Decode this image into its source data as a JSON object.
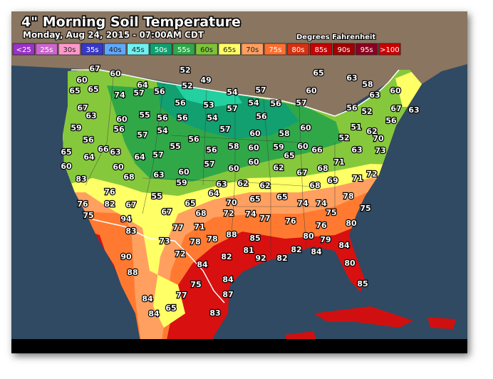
{
  "header": {
    "title": "4\" Morning Soil Temperature",
    "subtitle": "Monday, Aug 24, 2015 - 07:00AM CDT",
    "units": "Degrees Fahrenheit"
  },
  "legend": [
    {
      "label": "<25",
      "color": "#9a32c8"
    },
    {
      "label": "25s",
      "color": "#cc66cc"
    },
    {
      "label": "30s",
      "color": "#ff99cc"
    },
    {
      "label": "35s",
      "color": "#3838c8"
    },
    {
      "label": "40s",
      "color": "#5fa8ff"
    },
    {
      "label": "45s",
      "color": "#70f0f0"
    },
    {
      "label": "50s",
      "color": "#10a070"
    },
    {
      "label": "55s",
      "color": "#2ea84a"
    },
    {
      "label": "60s",
      "color": "#7cc43a"
    },
    {
      "label": "65s",
      "color": "#ffff66"
    },
    {
      "label": "70s",
      "color": "#ff9f60"
    },
    {
      "label": "75s",
      "color": "#ff7030"
    },
    {
      "label": "80s",
      "color": "#d83010"
    },
    {
      "label": "85s",
      "color": "#c80000"
    },
    {
      "label": "90s",
      "color": "#a00000"
    },
    {
      "label": "95s",
      "color": "#8a0020"
    },
    {
      "label": ">100",
      "color": "#cc0000"
    }
  ],
  "stations": [
    67,
    60,
    52,
    49,
    65,
    63,
    60,
    65,
    64,
    57,
    56,
    52,
    54,
    57,
    60,
    58,
    60,
    65,
    74,
    63,
    67,
    56,
    53,
    57,
    54,
    56,
    57,
    56,
    52,
    67,
    63,
    63,
    60,
    55,
    56,
    56,
    54,
    56,
    56,
    59,
    56,
    57,
    54,
    57,
    60,
    58,
    60,
    51,
    62,
    56,
    56,
    58,
    52,
    70,
    65,
    64,
    66,
    63,
    64,
    57,
    55,
    56,
    60,
    59,
    65,
    60,
    66,
    63,
    73,
    60,
    60,
    68,
    63,
    60,
    59,
    57,
    60,
    60,
    62,
    67,
    68,
    71,
    72,
    83,
    63,
    62,
    62,
    68,
    69,
    71,
    76,
    55,
    64,
    65,
    65,
    78,
    76,
    82,
    67,
    70,
    74,
    74,
    75,
    65,
    67,
    68,
    72,
    74,
    77,
    75,
    75,
    94,
    76,
    76,
    80,
    83,
    77,
    71,
    78,
    78,
    88,
    85,
    80,
    79,
    73,
    81,
    82,
    92,
    82,
    82,
    84,
    84,
    90,
    72,
    84,
    80,
    88,
    84,
    85,
    75,
    77,
    87,
    84,
    84,
    65,
    83
  ]
}
